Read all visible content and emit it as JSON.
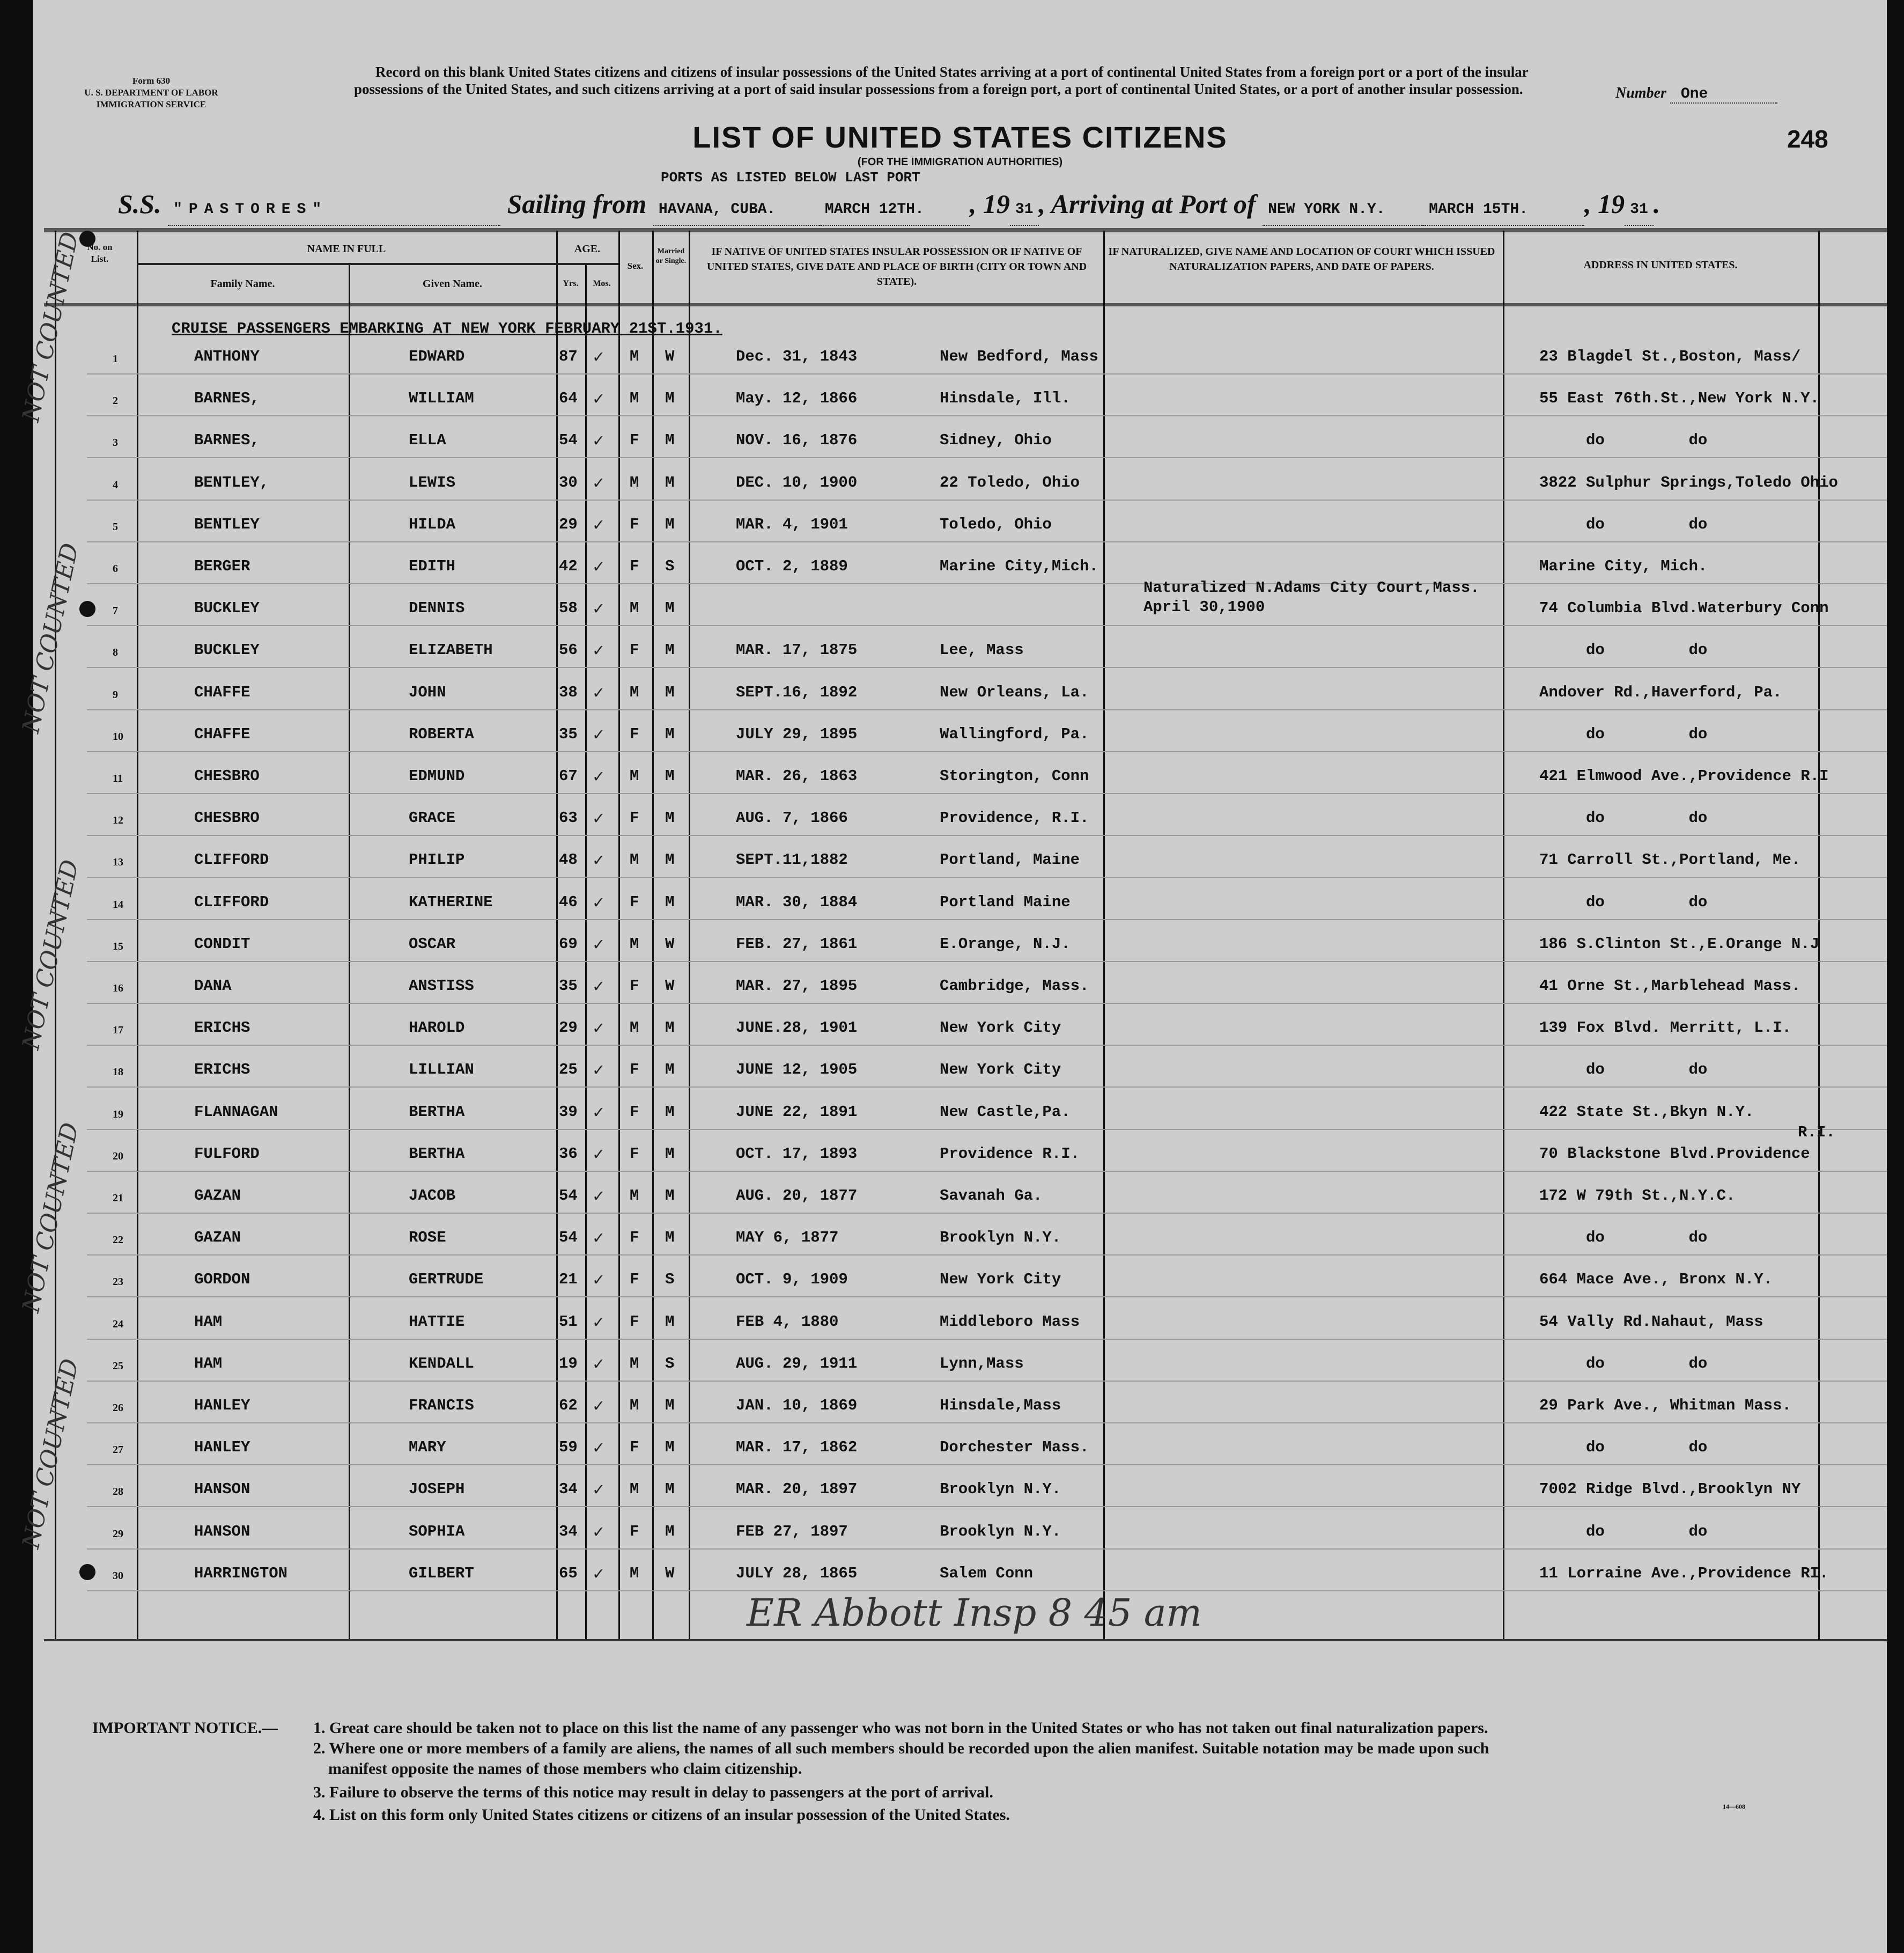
{
  "form": {
    "number": "Form 630",
    "department": "U. S. DEPARTMENT OF LABOR",
    "service": "IMMIGRATION SERVICE"
  },
  "record_text": "Record on this blank United States citizens and citizens of insular possessions of the United States arriving at a port of continental United States from a foreign port or a port of the insular possessions of the United States, and such citizens arriving at a port of said insular possessions from a foreign port, a port of continental United States, or a port of another insular possession.",
  "number": {
    "label": "Number",
    "value": "One"
  },
  "title": "LIST OF UNITED STATES CITIZENS",
  "page_number": "248",
  "subtitle": "(FOR THE IMMIGRATION AUTHORITIES)",
  "ports_note": "PORTS AS LISTED BELOW LAST PORT",
  "voyage": {
    "ss_label": "S.S.",
    "ship": "\"PASTORES\"",
    "sailing_label": "Sailing from",
    "sailing_port": "HAVANA, CUBA.",
    "sailing_date": "MARCH 12TH.",
    "year_prefix": "19",
    "sailing_year": "31",
    "arriving_label": "Arriving at Port of",
    "arrival_port": "NEW YORK N.Y.",
    "arrival_date": "MARCH 15TH.",
    "arrival_year": "31"
  },
  "columns": {
    "no": "No. on List.",
    "name_in_full": "NAME IN FULL",
    "family": "Family Name.",
    "given": "Given Name.",
    "age": "AGE.",
    "yrs": "Yrs.",
    "mos": "Mos.",
    "sex": "Sex.",
    "married": "Married or Single.",
    "birth": "IF NATIVE OF UNITED STATES INSULAR POSSESSION OR IF NATIVE OF UNITED STATES, GIVE DATE AND PLACE OF BIRTH (CITY OR TOWN AND STATE).",
    "naturalized": "IF NATURALIZED, GIVE NAME AND LOCATION OF COURT WHICH ISSUED NATURALIZATION PAPERS, AND DATE OF PAPERS.",
    "address": "ADDRESS IN UNITED STATES."
  },
  "section_heading": "CRUISE PASSENGERS EMBARKING AT NEW YORK FEBRUARY 21ST.1931.",
  "rows": [
    {
      "no": "1",
      "family": "ANTHONY",
      "given": "EDWARD",
      "age": "87",
      "sex": "M",
      "ms": "W",
      "bdate": "Dec. 31, 1843",
      "bplace": "New Bedford, Mass",
      "nat": "",
      "address": "23 Blagdel St.,Boston, Mass/"
    },
    {
      "no": "2",
      "family": "BARNES,",
      "given": "WILLIAM",
      "age": "64",
      "sex": "M",
      "ms": "M",
      "bdate": "May. 12, 1866",
      "bplace": "Hinsdale, Ill.",
      "nat": "",
      "address": "55 East 76th.St.,New York N.Y."
    },
    {
      "no": "3",
      "family": "BARNES,",
      "given": "ELLA",
      "age": "54",
      "sex": "F",
      "ms": "M",
      "bdate": "NOV. 16, 1876",
      "bplace": "Sidney, Ohio",
      "nat": "",
      "address": "     do         do"
    },
    {
      "no": "4",
      "family": "BENTLEY,",
      "given": "LEWIS",
      "age": "30",
      "sex": "M",
      "ms": "M",
      "bdate": "DEC. 10, 1900",
      "bplace": "22 Toledo, Ohio",
      "nat": "",
      "address": "3822 Sulphur Springs,Toledo Ohio"
    },
    {
      "no": "5",
      "family": "BENTLEY",
      "given": "HILDA",
      "age": "29",
      "sex": "F",
      "ms": "M",
      "bdate": "MAR. 4, 1901",
      "bplace": "Toledo, Ohio",
      "nat": "",
      "address": "     do         do"
    },
    {
      "no": "6",
      "family": "BERGER",
      "given": "EDITH",
      "age": "42",
      "sex": "F",
      "ms": "S",
      "bdate": "OCT. 2, 1889",
      "bplace": "Marine City,Mich.",
      "nat": "",
      "address": "Marine City, Mich."
    },
    {
      "no": "7",
      "family": "BUCKLEY",
      "given": "DENNIS",
      "age": "58",
      "sex": "M",
      "ms": "M",
      "bdate": "",
      "bplace": "",
      "nat": "Naturalized N.Adams City Court,Mass.",
      "nat2": "April 30,1900",
      "address": "74 Columbia Blvd.Waterbury Conn"
    },
    {
      "no": "8",
      "family": "BUCKLEY",
      "given": "ELIZABETH",
      "age": "56",
      "sex": "F",
      "ms": "M",
      "bdate": "MAR. 17, 1875",
      "bplace": "Lee, Mass",
      "nat": "",
      "address": "     do         do"
    },
    {
      "no": "9",
      "family": "CHAFFE",
      "given": "JOHN",
      "age": "38",
      "sex": "M",
      "ms": "M",
      "bdate": "SEPT.16, 1892",
      "bplace": "New Orleans, La.",
      "nat": "",
      "address": "Andover Rd.,Haverford, Pa."
    },
    {
      "no": "10",
      "family": "CHAFFE",
      "given": "ROBERTA",
      "age": "35",
      "sex": "F",
      "ms": "M",
      "bdate": "JULY 29, 1895",
      "bplace": "Wallingford, Pa.",
      "nat": "",
      "address": "     do         do"
    },
    {
      "no": "11",
      "family": "CHESBRO",
      "given": "EDMUND",
      "age": "67",
      "sex": "M",
      "ms": "M",
      "bdate": "MAR. 26, 1863",
      "bplace": "Storington, Conn",
      "nat": "",
      "address": "421 Elmwood Ave.,Providence R.I"
    },
    {
      "no": "12",
      "family": "CHESBRO",
      "given": "GRACE",
      "age": "63",
      "sex": "F",
      "ms": "M",
      "bdate": "AUG. 7, 1866",
      "bplace": "Providence, R.I.",
      "nat": "",
      "address": "     do         do"
    },
    {
      "no": "13",
      "family": "CLIFFORD",
      "given": "PHILIP",
      "age": "48",
      "sex": "M",
      "ms": "M",
      "bdate": "SEPT.11,1882",
      "bplace": "Portland, Maine",
      "nat": "",
      "address": "71 Carroll St.,Portland, Me."
    },
    {
      "no": "14",
      "family": "CLIFFORD",
      "given": "KATHERINE",
      "age": "46",
      "sex": "F",
      "ms": "M",
      "bdate": "MAR. 30, 1884",
      "bplace": "Portland Maine",
      "nat": "",
      "address": "     do         do"
    },
    {
      "no": "15",
      "family": "CONDIT",
      "given": "OSCAR",
      "age": "69",
      "sex": "M",
      "ms": "W",
      "bdate": "FEB. 27, 1861",
      "bplace": "E.Orange, N.J.",
      "nat": "",
      "address": "186 S.Clinton St.,E.Orange N.J"
    },
    {
      "no": "16",
      "family": "DANA",
      "given": "ANSTISS",
      "age": "35",
      "sex": "F",
      "ms": "W",
      "bdate": "MAR. 27, 1895",
      "bplace": "Cambridge, Mass.",
      "nat": "",
      "address": "41 Orne St.,Marblehead Mass."
    },
    {
      "no": "17",
      "family": "ERICHS",
      "given": "HAROLD",
      "age": "29",
      "sex": "M",
      "ms": "M",
      "bdate": "JUNE.28, 1901",
      "bplace": "New York City",
      "nat": "",
      "address": "139 Fox Blvd. Merritt, L.I."
    },
    {
      "no": "18",
      "family": "ERICHS",
      "given": "LILLIAN",
      "age": "25",
      "sex": "F",
      "ms": "M",
      "bdate": "JUNE 12, 1905",
      "bplace": "New York City",
      "nat": "",
      "address": "     do         do"
    },
    {
      "no": "19",
      "family": "FLANNAGAN",
      "given": "BERTHA",
      "age": "39",
      "sex": "F",
      "ms": "M",
      "bdate": "JUNE 22, 1891",
      "bplace": "New Castle,Pa.",
      "nat": "",
      "address": "422 State St.,Bkyn N.Y."
    },
    {
      "no": "20",
      "family": "FULFORD",
      "given": "BERTHA",
      "age": "36",
      "sex": "F",
      "ms": "M",
      "bdate": "OCT. 17, 1893",
      "bplace": "Providence R.I.",
      "nat": "",
      "address": "70 Blackstone Blvd.Providence",
      "address_note": "R.I."
    },
    {
      "no": "21",
      "family": "GAZAN",
      "given": "JACOB",
      "age": "54",
      "sex": "M",
      "ms": "M",
      "bdate": "AUG. 20, 1877",
      "bplace": "Savanah Ga.",
      "nat": "",
      "address": "172 W 79th St.,N.Y.C."
    },
    {
      "no": "22",
      "family": "GAZAN",
      "given": "ROSE",
      "age": "54",
      "sex": "F",
      "ms": "M",
      "bdate": "MAY 6, 1877",
      "bplace": "Brooklyn N.Y.",
      "nat": "",
      "address": "     do         do"
    },
    {
      "no": "23",
      "family": "GORDON",
      "given": "GERTRUDE",
      "age": "21",
      "sex": "F",
      "ms": "S",
      "bdate": "OCT. 9, 1909",
      "bplace": "New York City",
      "nat": "",
      "address": "664 Mace Ave., Bronx N.Y."
    },
    {
      "no": "24",
      "family": "HAM",
      "given": "HATTIE",
      "age": "51",
      "sex": "F",
      "ms": "M",
      "bdate": "FEB 4, 1880",
      "bplace": "Middleboro Mass",
      "nat": "",
      "address": "54 Vally Rd.Nahaut, Mass"
    },
    {
      "no": "25",
      "family": "HAM",
      "given": "KENDALL",
      "age": "19",
      "sex": "M",
      "ms": "S",
      "bdate": "AUG. 29, 1911",
      "bplace": "Lynn,Mass",
      "nat": "",
      "address": "     do         do"
    },
    {
      "no": "26",
      "family": "HANLEY",
      "given": "FRANCIS",
      "age": "62",
      "sex": "M",
      "ms": "M",
      "bdate": "JAN. 10, 1869",
      "bplace": "Hinsdale,Mass",
      "nat": "",
      "address": "29 Park Ave., Whitman Mass."
    },
    {
      "no": "27",
      "family": "HANLEY",
      "given": "MARY",
      "age": "59",
      "sex": "F",
      "ms": "M",
      "bdate": "MAR. 17, 1862",
      "bplace": "Dorchester Mass.",
      "nat": "",
      "address": "     do         do"
    },
    {
      "no": "28",
      "family": "HANSON",
      "given": "JOSEPH",
      "age": "34",
      "sex": "M",
      "ms": "M",
      "bdate": "MAR. 20, 1897",
      "bplace": "Brooklyn N.Y.",
      "nat": "",
      "address": "7002 Ridge Blvd.,Brooklyn NY"
    },
    {
      "no": "29",
      "family": "HANSON",
      "given": "SOPHIA",
      "age": "34",
      "sex": "F",
      "ms": "M",
      "bdate": "FEB 27, 1897",
      "bplace": "Brooklyn N.Y.",
      "nat": "",
      "address": "     do         do"
    },
    {
      "no": "30",
      "family": "HARRINGTON",
      "given": "GILBERT",
      "age": "65",
      "sex": "M",
      "ms": "W",
      "bdate": "JULY 28, 1865",
      "bplace": "Salem Conn",
      "nat": "",
      "address": "11 Lorraine Ave.,Providence RI."
    }
  ],
  "margin_notes": [
    "NOT COUNTED",
    "NOT COUNTED",
    "NOT COUNTED",
    "NOT COUNTED",
    "NOT COUNTED"
  ],
  "inspector_note": "ER Abbott  Insp  8 45 am",
  "notice": {
    "label": "IMPORTANT NOTICE.—",
    "items": [
      "1. Great care should be taken not to place on this list the name of any passenger who was not born in the United States or who has not taken out final naturalization papers.",
      "2. Where one or more members of a family are aliens, the names of all such members should be recorded upon the alien manifest.  Suitable notation may be made upon such",
      "manifest opposite the names of those members who claim citizenship.",
      "3. Failure to observe the terms of this notice may result in delay to passengers at the port of arrival.",
      "4. List on this form only United States citizens or citizens of an insular possession of the United States."
    ],
    "form_code": "14—608"
  }
}
